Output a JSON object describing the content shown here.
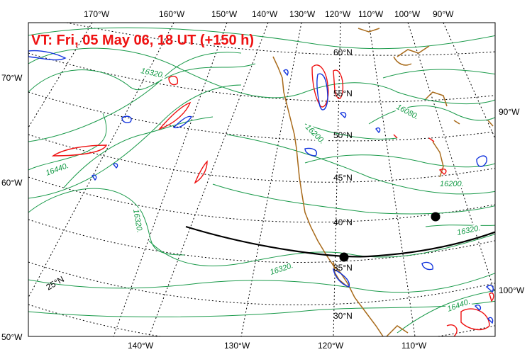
{
  "title": "VT:  Fri, 05 May 06, 18 UT (+150 h)",
  "colors": {
    "contour": "#1a9a4a",
    "coast": "#a86a1a",
    "grid": "#000000",
    "positive": "#ee1111",
    "negative": "#1133dd",
    "title": "#ee1111"
  },
  "top_lon_labels": [
    "170°W",
    "160°W",
    "150°W",
    "140°W",
    "130°W",
    "120°W",
    "110°W",
    "100°W",
    "90°W"
  ],
  "bottom_lon_labels": [
    "140°W",
    "130°W",
    "120°W",
    "110°W"
  ],
  "left_labels": [
    "70°W",
    "60°W",
    "50°W"
  ],
  "right_labels": [
    "90°W",
    "100°W"
  ],
  "lat_labels": [
    "60°N",
    "55°N",
    "50°N",
    "45°N",
    "40°N",
    "35°N",
    "30°N",
    "25°N"
  ],
  "contour_labels": [
    "16320.",
    "16080.",
    "16200.",
    "16440.",
    "16320.",
    "16200.",
    "16320.",
    "16320.",
    "16440."
  ],
  "markers": [
    "start-point",
    "end-point"
  ]
}
